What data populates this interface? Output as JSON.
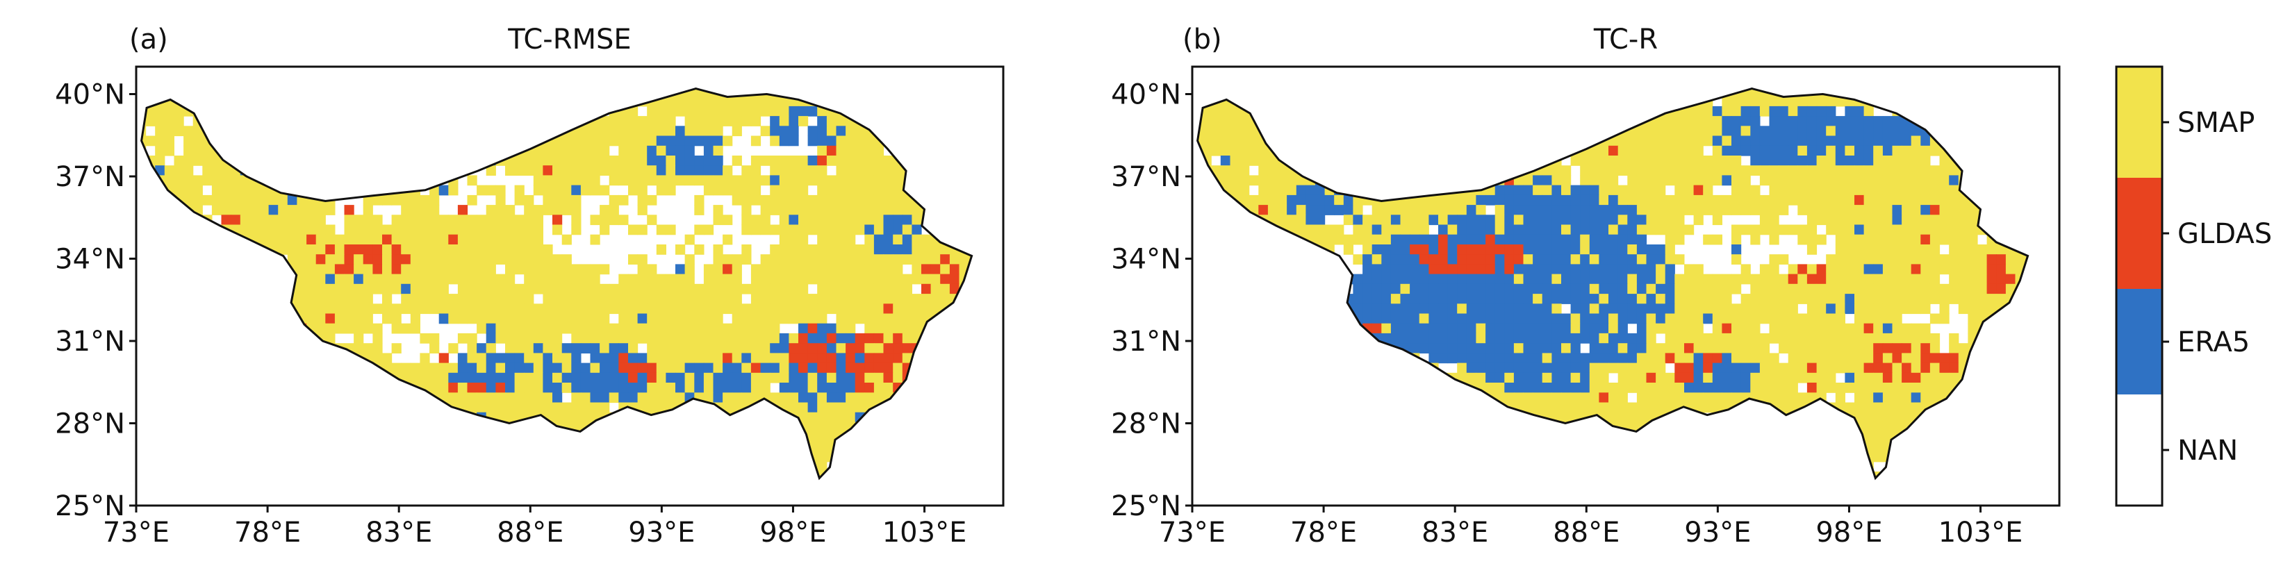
{
  "panels": [
    {
      "tag": "(a)",
      "title": "TC-RMSE"
    },
    {
      "tag": "(b)",
      "title": "TC-R"
    }
  ],
  "axes": {
    "lat_ticks": [
      "40°N",
      "37°N",
      "34°N",
      "31°N",
      "28°N",
      "25°N"
    ],
    "lon_ticks": [
      "73°E",
      "78°E",
      "83°E",
      "88°E",
      "93°E",
      "98°E",
      "103°E"
    ],
    "lat_values": [
      40,
      37,
      34,
      31,
      28,
      25
    ],
    "lon_values": [
      73,
      78,
      83,
      88,
      93,
      98,
      103
    ],
    "lon_range": [
      73,
      106
    ],
    "lat_range": [
      25,
      41
    ]
  },
  "legend": {
    "classes": [
      {
        "label": "SMAP",
        "color": "#f2e34c"
      },
      {
        "label": "GLDAS",
        "color": "#e8431f"
      },
      {
        "label": "ERA5",
        "color": "#2f72c4"
      },
      {
        "label": "NAN",
        "color": "#ffffff"
      }
    ]
  },
  "colors": {
    "smap": "#f2e34c",
    "gldas": "#e8431f",
    "era5": "#2f72c4",
    "nan": "#ffffff",
    "border": "#111111"
  }
}
